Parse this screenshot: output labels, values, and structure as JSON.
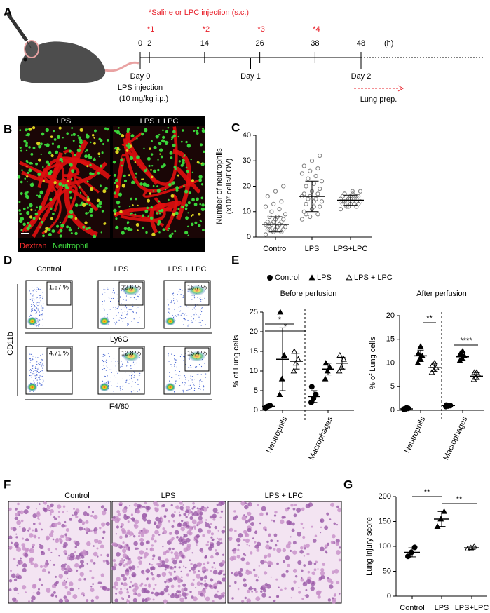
{
  "panel_labels": [
    "A",
    "B",
    "C",
    "D",
    "E",
    "F",
    "G"
  ],
  "timeline": {
    "title": "*Saline or LPC injection (s.c.)",
    "injections": [
      "*1",
      "*2",
      "*3",
      "*4"
    ],
    "xlim": [
      0,
      48
    ],
    "ticks": [
      0,
      2,
      14,
      26,
      38,
      48
    ],
    "unit": "(h)",
    "days": [
      "Day 0",
      "Day 1",
      "Day 2"
    ],
    "lps_note": [
      "LPS injection",
      "(10 mg/kg i.p.)"
    ],
    "lung": "Lung prep."
  },
  "imaging": {
    "panels": [
      "LPS",
      "LPS + LPC"
    ],
    "legend": [
      "Dextran",
      "Neutrophil"
    ]
  },
  "flow": {
    "columns": [
      "Control",
      "LPS",
      "LPS + LPC"
    ],
    "row1": [
      "1.57 %",
      "22.6 %",
      "15.7 %"
    ],
    "row2": [
      "4.71 %",
      "12.8 %",
      "15.4 %"
    ],
    "ylabel": "CD11b",
    "xlabels": [
      "Ly6G",
      "F4/80"
    ]
  },
  "histology": {
    "panels": [
      "Control",
      "LPS",
      "LPS + LPC"
    ]
  },
  "chart_data": [
    {
      "type": "dot",
      "ylabel": [
        "Number of neutrophils",
        "(x10² cells/FOV)"
      ],
      "categories": [
        "Control",
        "LPS",
        "LPS+LPC"
      ],
      "ylim": [
        0,
        40
      ],
      "yticks": [
        0,
        10,
        20,
        30,
        40
      ],
      "color": "#7f7f7f",
      "groups": [
        {
          "marker": "open-circle",
          "values": [
            1,
            2,
            2,
            3,
            3,
            3,
            4,
            4,
            4,
            5,
            5,
            5,
            6,
            6,
            6,
            7,
            7,
            8,
            8,
            9,
            10,
            11,
            12,
            13,
            14,
            16,
            18,
            20,
            3,
            4
          ],
          "mean": 5,
          "sd": 3
        },
        {
          "marker": "open-circle",
          "values": [
            7,
            8,
            9,
            10,
            11,
            12,
            13,
            14,
            14,
            15,
            15,
            16,
            16,
            17,
            17,
            18,
            19,
            20,
            21,
            22,
            23,
            24,
            25,
            26,
            27,
            28,
            30,
            32,
            9,
            12
          ],
          "mean": 16,
          "sd": 6
        },
        {
          "marker": "open-circle",
          "values": [
            11,
            12,
            12,
            13,
            13,
            13,
            14,
            14,
            14,
            14,
            15,
            15,
            15,
            15,
            16,
            16,
            16,
            17,
            17,
            18,
            12,
            13,
            14,
            15,
            16,
            14,
            15,
            13,
            17,
            18
          ],
          "mean": 14.5,
          "sd": 2
        }
      ]
    },
    {
      "type": "dot",
      "title": "Before perfusion",
      "ylabel": [
        "% of Lung cells"
      ],
      "categories": [
        "Neutrophils",
        "Macrophages"
      ],
      "ylim": [
        0,
        25
      ],
      "yticks": [
        0,
        5,
        10,
        15,
        20,
        25
      ],
      "color": "#000000",
      "significance": [
        "*",
        "*"
      ],
      "series": [
        {
          "name": "Control",
          "marker": "circle",
          "values": [
            [
              0.5,
              1,
              1.2,
              0.8
            ],
            [
              2,
              3,
              4,
              6
            ]
          ],
          "mean": [
            1,
            3.5
          ],
          "sd": [
            0.3,
            1.5
          ]
        },
        {
          "name": "LPS",
          "marker": "triangle",
          "values": [
            [
              4,
              8,
              14,
              25
            ],
            [
              8,
              10,
              11,
              12
            ]
          ],
          "mean": [
            13,
            10.5
          ],
          "sd": [
            8,
            1.5
          ]
        },
        {
          "name": "LPS + LPC",
          "marker": "open-triangle",
          "values": [
            [
              10,
              12,
              13,
              15
            ],
            [
              10,
              11,
              13,
              14
            ]
          ],
          "mean": [
            12.5,
            12
          ],
          "sd": [
            2,
            1.5
          ]
        }
      ]
    },
    {
      "type": "dot",
      "title": "After perfusion",
      "ylabel": [
        "% of Lung cells"
      ],
      "categories": [
        "Neutrophils",
        "Macrophages"
      ],
      "ylim": [
        0,
        20
      ],
      "yticks": [
        0,
        5,
        10,
        15,
        20
      ],
      "color": "#000000",
      "significance": [
        "**",
        "****"
      ],
      "series": [
        {
          "marker": "circle",
          "values": [
            [
              0.2,
              0.3,
              0.4,
              0.3,
              0.5
            ],
            [
              0.8,
              0.9,
              1,
              1.1,
              1
            ]
          ],
          "mean": [
            0.3,
            1
          ],
          "sd": [
            0.1,
            0.1
          ]
        },
        {
          "marker": "triangle",
          "values": [
            [
              10,
              11,
              11.5,
              12,
              13.5
            ],
            [
              10.5,
              11,
              11.5,
              12,
              12.5
            ]
          ],
          "mean": [
            11.5,
            11.3
          ],
          "sd": [
            1.2,
            0.8
          ]
        },
        {
          "marker": "open-triangle",
          "values": [
            [
              8,
              8.5,
              9,
              9.5,
              10
            ],
            [
              6.5,
              7,
              7.5,
              8,
              8
            ]
          ],
          "mean": [
            9,
            7.2
          ],
          "sd": [
            0.8,
            0.7
          ]
        }
      ]
    },
    {
      "type": "dot",
      "ylabel": [
        "Lung injury score"
      ],
      "categories": [
        "Control",
        "LPS",
        "LPS+LPC"
      ],
      "ylim": [
        0,
        200
      ],
      "yticks": [
        0,
        50,
        100,
        150,
        200
      ],
      "color": "#000000",
      "significance": [
        "**",
        "**"
      ],
      "groups": [
        {
          "marker": "circle",
          "values": [
            80,
            88,
            98
          ],
          "mean": 88,
          "sd": 9
        },
        {
          "marker": "triangle",
          "values": [
            140,
            155,
            170
          ],
          "mean": 155,
          "sd": 15
        },
        {
          "marker": "open-triangle",
          "values": [
            95,
            97,
            100
          ],
          "mean": 97,
          "sd": 3
        }
      ]
    }
  ]
}
